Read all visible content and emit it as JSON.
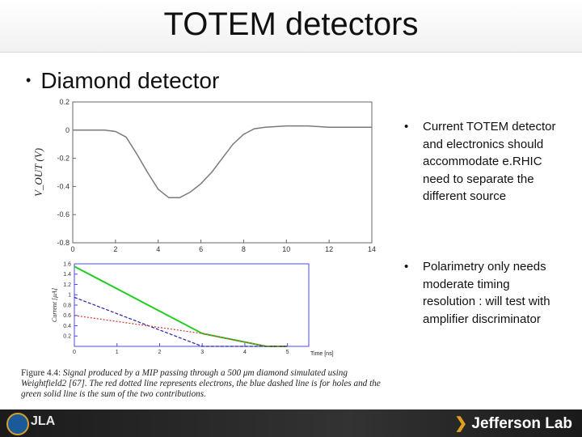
{
  "slide": {
    "title": "TOTEM detectors",
    "main_bullet": "Diamond detector",
    "right_bullets": [
      "Current TOTEM detector and electronics should accommodate e.RHIC need to separate the different source",
      "Polarimetry only needs moderate timing resolution : will test with amplifier discriminator"
    ],
    "caption_prefix": "Figure 4.4:",
    "caption_text": "Signal produced by a MIP passing through a 500 μm diamond simulated using Weightfield2 [67]. The red dotted line represents electrons, the blue dashed line is for holes and the green solid line is the sum of the two contributions.",
    "footer": {
      "logo_left_2": "JLA",
      "logo_right": "Jefferson Lab"
    }
  },
  "chart_data": [
    {
      "type": "line",
      "title": "",
      "xlabel": "",
      "ylabel": "V_OUT (V)",
      "xlim": [
        0,
        14
      ],
      "ylim": [
        -0.8,
        0.2
      ],
      "xticks": [
        0,
        2,
        4,
        6,
        8,
        10,
        12,
        14
      ],
      "yticks": [
        0.2,
        0,
        -0.2,
        -0.4,
        -0.6,
        -0.8
      ],
      "series": [
        {
          "name": "",
          "color": "#7a7a7a",
          "x": [
            0,
            1,
            1.5,
            2,
            2.5,
            3,
            3.5,
            4,
            4.5,
            5,
            5.5,
            6,
            6.5,
            7,
            7.5,
            8,
            8.5,
            9,
            10,
            11,
            12,
            13,
            14
          ],
          "y": [
            0,
            0,
            0,
            -0.01,
            -0.05,
            -0.17,
            -0.3,
            -0.42,
            -0.48,
            -0.48,
            -0.44,
            -0.38,
            -0.3,
            -0.2,
            -0.1,
            -0.03,
            0.01,
            0.02,
            0.03,
            0.03,
            0.02,
            0.02,
            0.02
          ]
        }
      ]
    },
    {
      "type": "line",
      "title": "",
      "xlabel": "Time [ns]",
      "ylabel": "Current [μA]",
      "xlim": [
        0,
        5.5
      ],
      "ylim": [
        0,
        1.6
      ],
      "xticks": [
        0,
        1,
        2,
        3,
        4,
        5
      ],
      "yticks": [
        1.6,
        1.4,
        1.2,
        1,
        0.8,
        0.6,
        0.4,
        0.2
      ],
      "series": [
        {
          "name": "",
          "color": "#22cc22",
          "style": "solid",
          "x": [
            0,
            3,
            4.5,
            5
          ],
          "y": [
            1.55,
            0.25,
            0,
            0
          ]
        },
        {
          "name": "",
          "color": "#2222aa",
          "style": "dashed",
          "x": [
            0,
            3,
            5
          ],
          "y": [
            0.95,
            0,
            0
          ]
        },
        {
          "name": "",
          "color": "#dd3333",
          "style": "dotted",
          "x": [
            0,
            3,
            4.5,
            5
          ],
          "y": [
            0.6,
            0.25,
            0,
            0
          ]
        }
      ]
    }
  ]
}
